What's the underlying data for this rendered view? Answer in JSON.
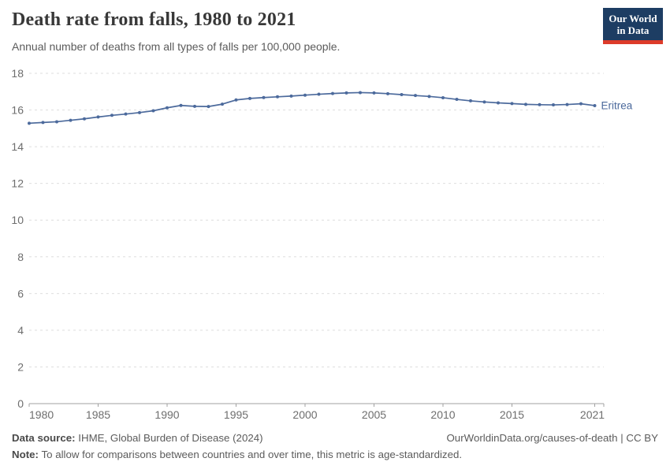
{
  "header": {
    "title": "Death rate from falls, 1980 to 2021",
    "subtitle": "Annual number of deaths from all types of falls per 100,000 people."
  },
  "logo": {
    "line1": "Our World",
    "line2": "in Data",
    "bg_color": "#1d3d63",
    "accent_color": "#dd3b2a"
  },
  "chart_data": {
    "type": "line",
    "title": "Death rate from falls, 1980 to 2021",
    "xlabel": "",
    "ylabel": "",
    "ylim": [
      0,
      18
    ],
    "y_ticks": [
      0,
      2,
      4,
      6,
      8,
      10,
      12,
      14,
      16,
      18
    ],
    "x_ticks": [
      1980,
      1985,
      1990,
      1995,
      2000,
      2005,
      2010,
      2015,
      2021
    ],
    "grid": "horizontal dashed",
    "legend_position": "end-of-line label",
    "x": [
      1980,
      1981,
      1982,
      1983,
      1984,
      1985,
      1986,
      1987,
      1988,
      1989,
      1990,
      1991,
      1992,
      1993,
      1994,
      1995,
      1996,
      1997,
      1998,
      1999,
      2000,
      2001,
      2002,
      2003,
      2004,
      2005,
      2006,
      2007,
      2008,
      2009,
      2010,
      2011,
      2012,
      2013,
      2014,
      2015,
      2016,
      2017,
      2018,
      2019,
      2020,
      2021
    ],
    "series": [
      {
        "name": "Eritrea",
        "color": "#4C6A9C",
        "values": [
          15.28,
          15.32,
          15.36,
          15.44,
          15.52,
          15.62,
          15.71,
          15.78,
          15.86,
          15.96,
          16.12,
          16.25,
          16.2,
          16.19,
          16.32,
          16.55,
          16.63,
          16.68,
          16.72,
          16.76,
          16.81,
          16.86,
          16.9,
          16.93,
          16.95,
          16.93,
          16.89,
          16.84,
          16.79,
          16.74,
          16.67,
          16.58,
          16.5,
          16.44,
          16.39,
          16.35,
          16.31,
          16.29,
          16.28,
          16.3,
          16.34,
          16.24
        ]
      }
    ]
  },
  "footer": {
    "source_label": "Data source:",
    "source_text": "IHME, Global Burden of Disease (2024)",
    "right_text": "OurWorldinData.org/causes-of-death | CC BY",
    "note_label": "Note:",
    "note_text": "To allow for comparisons between countries and over time, this metric is age-standardized."
  },
  "colors": {
    "grid": "#dedede",
    "axis": "#a1a1a1",
    "tick_text": "#6e6e6e",
    "title_text": "#383838",
    "body_text": "#5b5b5b",
    "line": "#4C6A9C"
  }
}
